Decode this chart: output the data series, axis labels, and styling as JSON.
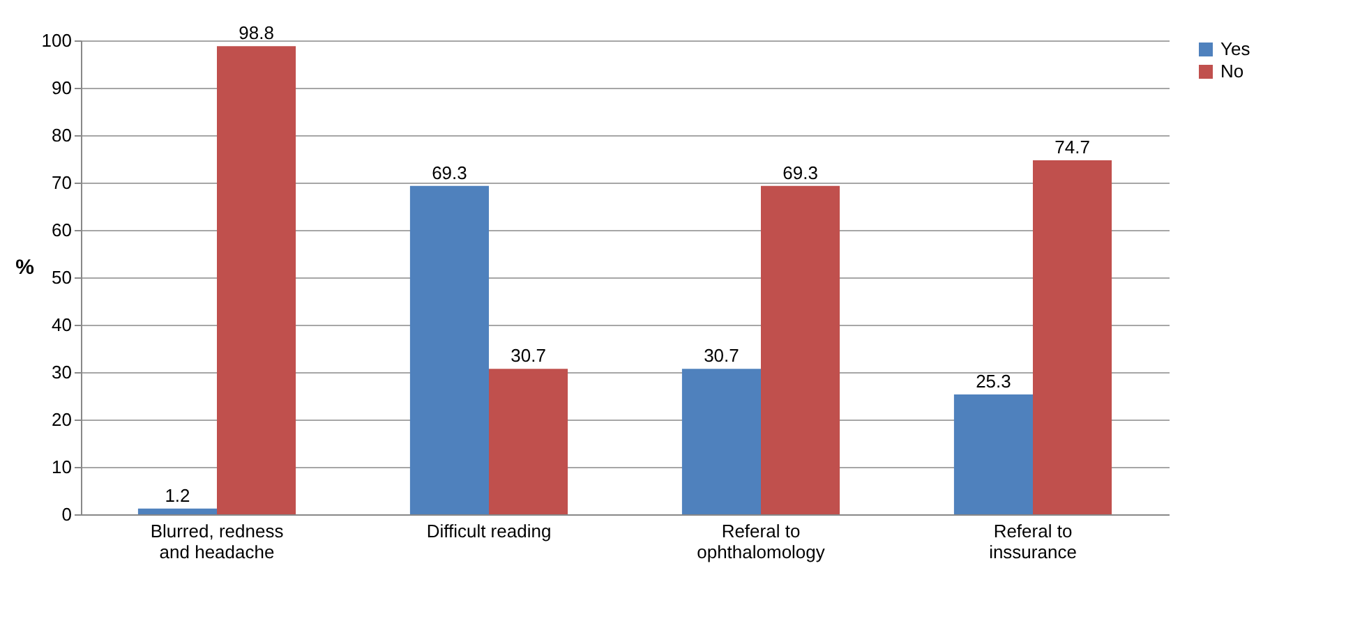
{
  "chart_data": {
    "type": "bar",
    "categories": [
      "Blurred, redness and headache",
      "Difficult reading",
      "Referal to ophthalomology",
      "Referal to inssurance"
    ],
    "ylabel": "%",
    "series": [
      {
        "name": "Yes",
        "color": "#4f81bd",
        "values": [
          1.2,
          69.3,
          30.7,
          25.3
        ]
      },
      {
        "name": "No",
        "color": "#c0504d",
        "values": [
          98.8,
          30.7,
          69.3,
          74.7
        ]
      }
    ],
    "ylim": [
      0,
      100
    ],
    "yticks": [
      0,
      10,
      20,
      30,
      40,
      50,
      60,
      70,
      80,
      90,
      100
    ],
    "grid": "y",
    "legend": "right",
    "data_labels": true
  }
}
